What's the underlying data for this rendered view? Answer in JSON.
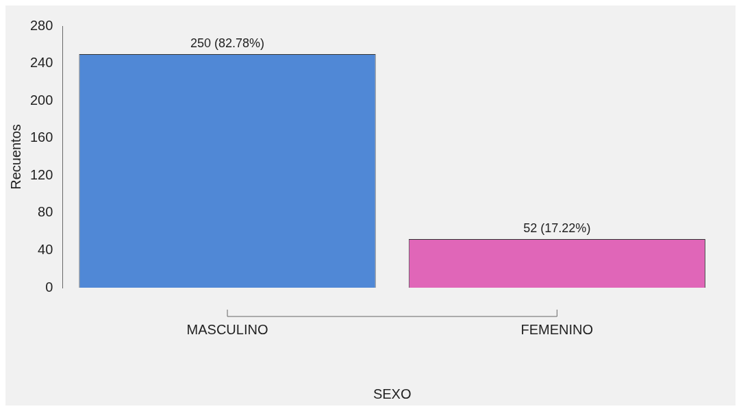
{
  "chart_data": {
    "type": "bar",
    "xlabel": "SEXO",
    "ylabel": "Recuentos",
    "categories": [
      "MASCULINO",
      "FEMENINO"
    ],
    "values": [
      250,
      52
    ],
    "colors": [
      "#5088d6",
      "#e066b8"
    ],
    "value_labels": [
      "250 (82.78%)",
      "52 (17.22%)"
    ],
    "ylim": [
      0,
      280
    ],
    "yticks": [
      0,
      40,
      80,
      120,
      160,
      200,
      240,
      280
    ],
    "grid": false,
    "legend": false
  }
}
